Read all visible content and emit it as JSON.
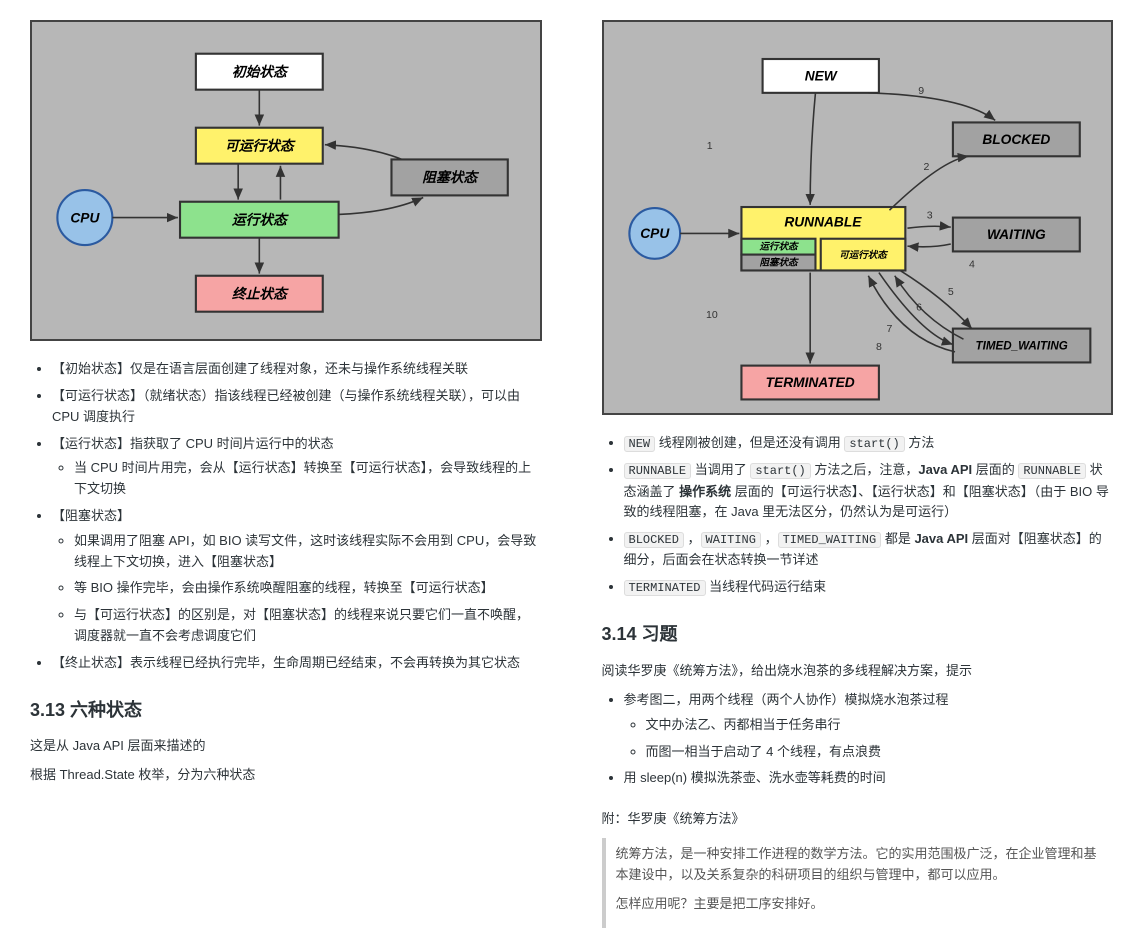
{
  "left": {
    "diagram": {
      "bg": "#b7b7b7",
      "border": "#444444",
      "cpu": {
        "label": "CPU",
        "fill": "#98c2e8",
        "stroke": "#2b5aa0"
      },
      "nodes": {
        "init": {
          "label": "初始状态",
          "fill": "#ffffff"
        },
        "runnable": {
          "label": "可运行状态",
          "fill": "#fff26b"
        },
        "running": {
          "label": "运行状态",
          "fill": "#8de28d"
        },
        "blocked": {
          "label": "阻塞状态",
          "fill": "#a2a2a2"
        },
        "term": {
          "label": "终止状态",
          "fill": "#f6a4a4"
        }
      }
    },
    "bullets": [
      {
        "t": "【初始状态】仅是在语言层面创建了线程对象，还未与操作系统线程关联"
      },
      {
        "t": "【可运行状态】（就绪状态）指该线程已经被创建（与操作系统线程关联），可以由 CPU 调度执行"
      },
      {
        "t": "【运行状态】指获取了 CPU 时间片运行中的状态",
        "sub": [
          "当 CPU 时间片用完，会从【运行状态】转换至【可运行状态】，会导致线程的上下文切换"
        ]
      },
      {
        "t": "【阻塞状态】",
        "sub": [
          "如果调用了阻塞 API，如 BIO 读写文件，这时该线程实际不会用到 CPU，会导致线程上下文切换，进入【阻塞状态】",
          "等 BIO 操作完毕，会由操作系统唤醒阻塞的线程，转换至【可运行状态】",
          "与【可运行状态】的区别是，对【阻塞状态】的线程来说只要它们一直不唤醒，调度器就一直不会考虑调度它们"
        ]
      },
      {
        "t": "【终止状态】表示线程已经执行完毕，生命周期已经结束，不会再转换为其它状态"
      }
    ],
    "h2": "3.13 六种状态",
    "p1": "这是从 Java API 层面来描述的",
    "p2": "根据 Thread.State 枚举，分为六种状态"
  },
  "right": {
    "diagram": {
      "bg": "#b7b7b7",
      "cpu": {
        "label": "CPU",
        "fill": "#98c2e8"
      },
      "nodes": {
        "new": {
          "label": "NEW",
          "fill": "#ffffff"
        },
        "blocked": {
          "label": "BLOCKED",
          "fill": "#a2a2a2"
        },
        "runnable": {
          "label": "RUNNABLE",
          "fill": "#fff26b"
        },
        "run_sub": {
          "label": "运行状态",
          "fill": "#8de28d"
        },
        "block_sub": {
          "label": "阻塞状态",
          "fill": "#a2a2a2"
        },
        "ready_sub": {
          "label": "可运行状态",
          "fill": "#fff26b"
        },
        "waiting": {
          "label": "WAITING",
          "fill": "#a2a2a2"
        },
        "timed": {
          "label": "TIMED_WAITING",
          "fill": "#a2a2a2"
        },
        "term": {
          "label": "TERMINATED",
          "fill": "#f6a4a4"
        }
      },
      "edge_labels": [
        "1",
        "2",
        "3",
        "4",
        "5",
        "6",
        "7",
        "8",
        "9",
        "10"
      ]
    },
    "bullets": [
      {
        "parts": [
          {
            "c": "NEW"
          },
          {
            "t": " 线程刚被创建，但是还没有调用 "
          },
          {
            "c": "start()"
          },
          {
            "t": " 方法"
          }
        ]
      },
      {
        "parts": [
          {
            "c": "RUNNABLE"
          },
          {
            "t": " 当调用了 "
          },
          {
            "c": "start()"
          },
          {
            "t": " 方法之后，注意，"
          },
          {
            "b": "Java API"
          },
          {
            "t": " 层面的 "
          },
          {
            "c": "RUNNABLE"
          },
          {
            "t": " 状态涵盖了 "
          },
          {
            "b": "操作系统"
          },
          {
            "t": " 层面的【可运行状态】、【运行状态】和【阻塞状态】（由于 BIO 导致的线程阻塞，在 Java 里无法区分，仍然认为是可运行）"
          }
        ]
      },
      {
        "parts": [
          {
            "c": "BLOCKED"
          },
          {
            "t": " ，"
          },
          {
            "c": "WAITING"
          },
          {
            "t": " ，"
          },
          {
            "c": "TIMED_WAITING"
          },
          {
            "t": " 都是 "
          },
          {
            "b": "Java API"
          },
          {
            "t": " 层面对【阻塞状态】的细分，后面会在状态转换一节详述"
          }
        ]
      },
      {
        "parts": [
          {
            "c": "TERMINATED"
          },
          {
            "t": " 当线程代码运行结束"
          }
        ]
      }
    ],
    "h2": "3.14 习题",
    "p1": "阅读华罗庚《统筹方法》，给出烧水泡茶的多线程解决方案，提示",
    "bul2": [
      {
        "t": "参考图二，用两个线程（两个人协作）模拟烧水泡茶过程",
        "sub": [
          "文中办法乙、丙都相当于任务串行",
          "而图一相当于启动了 4 个线程，有点浪费"
        ]
      },
      {
        "t": "用 sleep(n) 模拟洗茶壶、洗水壶等耗费的时间"
      }
    ],
    "p2": "附：华罗庚《统筹方法》",
    "quote": [
      "统筹方法，是一种安排工作进程的数学方法。它的实用范围极广泛，在企业管理和基本建设中，以及关系复杂的科研项目的组织与管理中，都可以应用。",
      "怎样应用呢？主要是把工序安排好。"
    ]
  }
}
